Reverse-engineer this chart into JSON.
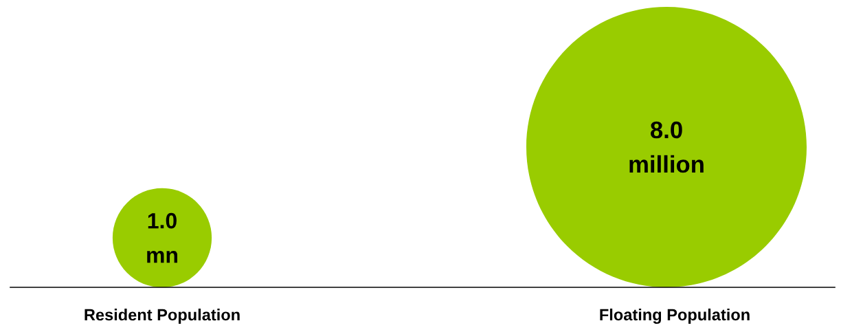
{
  "chart_data": {
    "type": "other",
    "categories": [
      "Resident Population",
      "Floating Population"
    ],
    "values": [
      1.0,
      8.0
    ],
    "value_labels": [
      "1.0",
      "8.0"
    ],
    "annotations": [
      "mn",
      "million"
    ],
    "color": "#99cc00"
  }
}
